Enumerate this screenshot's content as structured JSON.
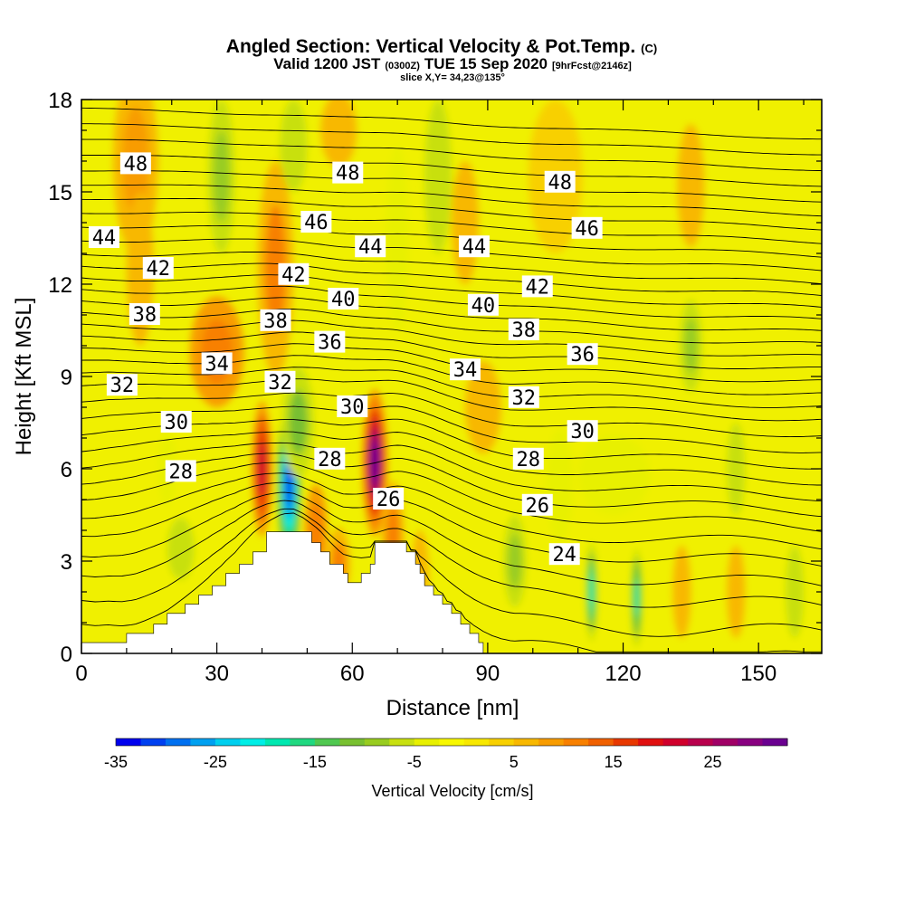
{
  "title": {
    "main": "Angled Section: Vertical Velocity & Pot.Temp.",
    "main_unit": "(C)",
    "valid_prefix": "Valid 1200 JST",
    "valid_utc": "(0300Z)",
    "valid_date": "TUE 15 Sep 2020",
    "forecast": "[9hrFcst@2146z]",
    "slice": "slice X,Y= 34,23@135°"
  },
  "colors": {
    "frame": "#000000",
    "terrain": "#ffffff",
    "contour": "#000000",
    "background_field": "#f0f000"
  },
  "chart_data": {
    "type": "heatmap",
    "xlabel": "Distance [nm]",
    "ylabel": "Height [Kft MSL]",
    "xlim": [
      0,
      164
    ],
    "ylim": [
      0,
      18
    ],
    "xticks": [
      "0",
      "30",
      "60",
      "90",
      "120",
      "150"
    ],
    "xtick_values": [
      0,
      30,
      60,
      90,
      120,
      150
    ],
    "yticks": [
      "0",
      "3",
      "6",
      "9",
      "12",
      "15",
      "18"
    ],
    "ytick_values": [
      0,
      3,
      6,
      9,
      12,
      15,
      18
    ],
    "minor_x_step": 10,
    "minor_y_step": 1,
    "colorbar": {
      "label": "Vertical Velocity [cm/s]",
      "min": -35,
      "max": 32,
      "step": 2.5,
      "tick_labels": [
        "-35",
        "-25",
        "-15",
        "-5",
        "5",
        "15",
        "25"
      ],
      "tick_values": [
        -35,
        -25,
        -15,
        -5,
        5,
        15,
        25
      ],
      "colors": [
        "#0000ee",
        "#0040f0",
        "#0070f0",
        "#00a0f0",
        "#00cfee",
        "#00eee6",
        "#00e8b0",
        "#20d880",
        "#50c850",
        "#78c030",
        "#98cc20",
        "#c8e010",
        "#e8f000",
        "#f8f800",
        "#f8e800",
        "#f8d000",
        "#f8b800",
        "#f89c00",
        "#f88000",
        "#f06000",
        "#e83800",
        "#e01010",
        "#d0002c",
        "#b8004c",
        "#a00066",
        "#880080",
        "#6a0090"
      ]
    },
    "vertical_velocity_features": [
      {
        "x": 12,
        "y": 16.0,
        "value": 8,
        "rx": 5,
        "ry": 3.0
      },
      {
        "x": 30,
        "y": 9.8,
        "value": 12,
        "rx": 6,
        "ry": 1.8
      },
      {
        "x": 43,
        "y": 12.5,
        "value": 10,
        "rx": 4,
        "ry": 3.5
      },
      {
        "x": 31,
        "y": 15.5,
        "value": -8,
        "rx": 3,
        "ry": 2.5
      },
      {
        "x": 47,
        "y": 16.5,
        "value": -6,
        "rx": 3,
        "ry": 1.5
      },
      {
        "x": 57,
        "y": 17.0,
        "value": 6,
        "rx": 4,
        "ry": 1.2
      },
      {
        "x": 70,
        "y": 13.5,
        "value": -5,
        "rx": 2.5,
        "ry": 3.0
      },
      {
        "x": 79,
        "y": 15.5,
        "value": -7,
        "rx": 3,
        "ry": 2.5
      },
      {
        "x": 40,
        "y": 6.0,
        "value": 22,
        "rx": 2.2,
        "ry": 2.2
      },
      {
        "x": 46,
        "y": 5.5,
        "value": -32,
        "rx": 2.6,
        "ry": 2.5
      },
      {
        "x": 48,
        "y": 7.5,
        "value": -12,
        "rx": 3.5,
        "ry": 1.8
      },
      {
        "x": 52,
        "y": 4.0,
        "value": 12,
        "rx": 2.5,
        "ry": 1.5
      },
      {
        "x": 57,
        "y": 2.9,
        "value": 10,
        "rx": 2.5,
        "ry": 1.2
      },
      {
        "x": 65,
        "y": 6.2,
        "value": 30,
        "rx": 2.8,
        "ry": 2.4
      },
      {
        "x": 69,
        "y": 3.8,
        "value": 10,
        "rx": 2.5,
        "ry": 1.8
      },
      {
        "x": 75,
        "y": 2.5,
        "value": 6,
        "rx": 2,
        "ry": 1.5
      },
      {
        "x": 22,
        "y": 3.4,
        "value": -6,
        "rx": 3,
        "ry": 1.0
      },
      {
        "x": 19,
        "y": 6.0,
        "value": -4,
        "rx": 2,
        "ry": 1.2
      },
      {
        "x": 85,
        "y": 14.0,
        "value": 5,
        "rx": 3,
        "ry": 2.0
      },
      {
        "x": 106,
        "y": 5.5,
        "value": -5,
        "rx": 3,
        "ry": 1.8
      },
      {
        "x": 96,
        "y": 3.0,
        "value": -8,
        "rx": 2.5,
        "ry": 1.5
      },
      {
        "x": 113,
        "y": 2.0,
        "value": -20,
        "rx": 1.2,
        "ry": 1.6
      },
      {
        "x": 118,
        "y": 5.8,
        "value": -5,
        "rx": 8,
        "ry": 1.3
      },
      {
        "x": 123,
        "y": 1.8,
        "value": -18,
        "rx": 1.2,
        "ry": 1.6
      },
      {
        "x": 135,
        "y": 10.0,
        "value": -8,
        "rx": 2.5,
        "ry": 1.5
      },
      {
        "x": 145,
        "y": 6.0,
        "value": -7,
        "rx": 2,
        "ry": 1.5
      },
      {
        "x": 135,
        "y": 15.2,
        "value": 7,
        "rx": 3,
        "ry": 2.0
      },
      {
        "x": 145,
        "y": 2.0,
        "value": 7,
        "rx": 2,
        "ry": 1.5
      },
      {
        "x": 158,
        "y": 2.0,
        "value": -6,
        "rx": 2,
        "ry": 1.5
      },
      {
        "x": 105,
        "y": 15.5,
        "value": 4,
        "rx": 6,
        "ry": 2.5
      },
      {
        "x": 89,
        "y": 8.0,
        "value": 5,
        "rx": 4,
        "ry": 1.5
      },
      {
        "x": 13,
        "y": 12.5,
        "value": 5,
        "rx": 3,
        "ry": 2.5
      },
      {
        "x": 133,
        "y": 2.0,
        "value": 5,
        "rx": 2,
        "ry": 1.5
      }
    ],
    "terrain_profile": [
      [
        0,
        0
      ],
      [
        0,
        0.35
      ],
      [
        10,
        0.35
      ],
      [
        10,
        0.65
      ],
      [
        16,
        0.65
      ],
      [
        16,
        0.95
      ],
      [
        19,
        0.95
      ],
      [
        19,
        1.3
      ],
      [
        23,
        1.3
      ],
      [
        23,
        1.6
      ],
      [
        26,
        1.6
      ],
      [
        26,
        1.9
      ],
      [
        29,
        1.9
      ],
      [
        29,
        2.2
      ],
      [
        32,
        2.2
      ],
      [
        32,
        2.6
      ],
      [
        35,
        2.6
      ],
      [
        35,
        2.9
      ],
      [
        38,
        2.9
      ],
      [
        38,
        3.3
      ],
      [
        41,
        3.3
      ],
      [
        41,
        3.95
      ],
      [
        51,
        3.95
      ],
      [
        51,
        3.6
      ],
      [
        53,
        3.6
      ],
      [
        53,
        3.3
      ],
      [
        55,
        3.3
      ],
      [
        55,
        2.9
      ],
      [
        58,
        2.9
      ],
      [
        58,
        2.6
      ],
      [
        59,
        2.6
      ],
      [
        59,
        2.3
      ],
      [
        62,
        2.3
      ],
      [
        62,
        2.6
      ],
      [
        64,
        2.6
      ],
      [
        64,
        2.9
      ],
      [
        65,
        2.9
      ],
      [
        65,
        3.6
      ],
      [
        72,
        3.6
      ],
      [
        72,
        3.3
      ],
      [
        74,
        3.3
      ],
      [
        74,
        2.9
      ],
      [
        75,
        2.9
      ],
      [
        75,
        2.6
      ],
      [
        76,
        2.6
      ],
      [
        76,
        2.2
      ],
      [
        78,
        2.2
      ],
      [
        78,
        1.9
      ],
      [
        80,
        1.9
      ],
      [
        80,
        1.6
      ],
      [
        82,
        1.6
      ],
      [
        82,
        1.3
      ],
      [
        84,
        1.3
      ],
      [
        84,
        0.95
      ],
      [
        86,
        0.95
      ],
      [
        86,
        0.65
      ],
      [
        88,
        0.65
      ],
      [
        88,
        0.35
      ],
      [
        89,
        0.35
      ],
      [
        89,
        0
      ]
    ],
    "isentropes": {
      "base_levels": [
        0.7,
        1.6,
        2.5,
        3.2,
        3.9,
        4.5,
        5.1,
        5.6,
        6.1,
        6.6,
        7.1,
        7.6,
        8.1,
        8.6,
        9.0,
        9.4,
        9.8,
        10.2,
        10.6,
        11.0,
        11.4,
        11.8,
        12.2,
        12.6,
        13.0,
        13.45,
        13.9,
        14.35,
        14.8,
        15.25,
        15.7,
        16.2,
        16.7,
        17.2,
        17.7
      ],
      "label_values": [
        "48",
        "48",
        "48",
        "46",
        "46",
        "44",
        "44",
        "44",
        "42",
        "42",
        "42",
        "40",
        "40",
        "38",
        "38",
        "38",
        "36",
        "36",
        "34",
        "34",
        "32",
        "32",
        "32",
        "30",
        "30",
        "30",
        "28",
        "28",
        "28",
        "26",
        "26",
        "24"
      ],
      "labels": [
        {
          "text": "48",
          "x": 12,
          "y": 15.9
        },
        {
          "text": "48",
          "x": 59,
          "y": 15.6
        },
        {
          "text": "48",
          "x": 106,
          "y": 15.3
        },
        {
          "text": "46",
          "x": 52,
          "y": 14.0
        },
        {
          "text": "46",
          "x": 112,
          "y": 13.8
        },
        {
          "text": "44",
          "x": 5,
          "y": 13.5
        },
        {
          "text": "44",
          "x": 64,
          "y": 13.2
        },
        {
          "text": "44",
          "x": 87,
          "y": 13.2
        },
        {
          "text": "42",
          "x": 17,
          "y": 12.5
        },
        {
          "text": "42",
          "x": 47,
          "y": 12.3
        },
        {
          "text": "42",
          "x": 101,
          "y": 11.9
        },
        {
          "text": "40",
          "x": 58,
          "y": 11.5
        },
        {
          "text": "40",
          "x": 89,
          "y": 11.3
        },
        {
          "text": "38",
          "x": 14,
          "y": 11.0
        },
        {
          "text": "38",
          "x": 43,
          "y": 10.8
        },
        {
          "text": "38",
          "x": 98,
          "y": 10.5
        },
        {
          "text": "36",
          "x": 55,
          "y": 10.1
        },
        {
          "text": "36",
          "x": 111,
          "y": 9.7
        },
        {
          "text": "34",
          "x": 30,
          "y": 9.4
        },
        {
          "text": "34",
          "x": 85,
          "y": 9.2
        },
        {
          "text": "32",
          "x": 9,
          "y": 8.7
        },
        {
          "text": "32",
          "x": 44,
          "y": 8.8
        },
        {
          "text": "32",
          "x": 98,
          "y": 8.3
        },
        {
          "text": "30",
          "x": 60,
          "y": 8.0
        },
        {
          "text": "30",
          "x": 21,
          "y": 7.5
        },
        {
          "text": "30",
          "x": 111,
          "y": 7.2
        },
        {
          "text": "28",
          "x": 55,
          "y": 6.3
        },
        {
          "text": "28",
          "x": 22,
          "y": 5.9
        },
        {
          "text": "28",
          "x": 99,
          "y": 6.3
        },
        {
          "text": "26",
          "x": 68,
          "y": 5.0
        },
        {
          "text": "26",
          "x": 101,
          "y": 4.8
        },
        {
          "text": "24",
          "x": 107,
          "y": 3.2
        }
      ]
    }
  }
}
